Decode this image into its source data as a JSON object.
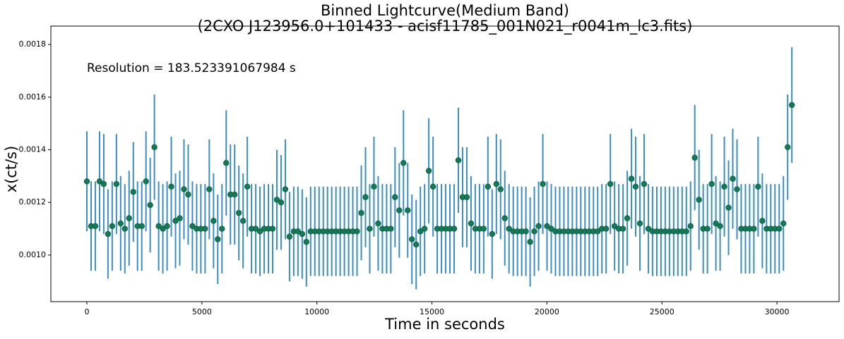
{
  "chart_data": {
    "type": "errorbar",
    "title": [
      "Binned Lightcurve(Medium Band)",
      "(2CXO J123956.0+101433 - acisf11785_001N021_r0041m_lc3.fits)"
    ],
    "annotation": "Resolution = 183.523391067984 s",
    "xlabel": "Time in seconds",
    "ylabel": "x(ct/s)",
    "marker_color": "#137a55",
    "errorbar_color": "#3b8dc1",
    "xlim": [
      -1566,
      32700
    ],
    "ylim": [
      0.000823,
      0.00187
    ],
    "xticks": [
      0,
      5000,
      10000,
      15000,
      20000,
      25000,
      30000
    ],
    "yticks": [
      {
        "value": 0.001,
        "label": "0.0010"
      },
      0.0012,
      0.0014,
      0.0016,
      0.0018
    ],
    "x": [
      0,
      184,
      367,
      551,
      734,
      918,
      1101,
      1285,
      1468,
      1652,
      1835,
      2019,
      2202,
      2386,
      2569,
      2753,
      2936,
      3120,
      3303,
      3487,
      3670,
      3854,
      4038,
      4221,
      4405,
      4588,
      4772,
      4955,
      5139,
      5322,
      5506,
      5689,
      5873,
      6056,
      6240,
      6423,
      6607,
      6790,
      6974,
      7157,
      7341,
      7524,
      7708,
      7892,
      8075,
      8259,
      8442,
      8626,
      8809,
      8993,
      9176,
      9360,
      9543,
      9727,
      9910,
      10094,
      10277,
      10461,
      10644,
      10828,
      11011,
      11195,
      11378,
      11562,
      11745,
      11929,
      12113,
      12296,
      12480,
      12663,
      12847,
      13030,
      13214,
      13397,
      13581,
      13764,
      13948,
      14131,
      14315,
      14498,
      14682,
      14865,
      15049,
      15232,
      15416,
      15599,
      15783,
      15967,
      16150,
      16334,
      16517,
      16701,
      16884,
      17068,
      17251,
      17435,
      17618,
      17802,
      17985,
      18169,
      18352,
      18536,
      18719,
      18903,
      19086,
      19270,
      19453,
      19637,
      19821,
      20004,
      20188,
      20371,
      20555,
      20738,
      20922,
      21105,
      21289,
      21472,
      21656,
      21839,
      22023,
      22206,
      22390,
      22573,
      22757,
      22940,
      23124,
      23307,
      23491,
      23675,
      23858,
      24042,
      24225,
      24409,
      24592,
      24776,
      24959,
      25143,
      25326,
      25510,
      25693,
      25877,
      26060,
      26244,
      26427,
      26611,
      26794,
      26978,
      27161,
      27345,
      27529,
      27712,
      27896,
      28079,
      28263,
      28446,
      28630,
      28813,
      28997,
      29180,
      29364,
      29547,
      29731,
      29914,
      30098,
      30281,
      30465,
      30648
    ],
    "values": [
      0.00128,
      0.00111,
      0.00111,
      0.00128,
      0.00127,
      0.00108,
      0.00111,
      0.00127,
      0.00112,
      0.0011,
      0.00114,
      0.00124,
      0.00111,
      0.00111,
      0.00128,
      0.00119,
      0.00141,
      0.00111,
      0.0011,
      0.00111,
      0.00126,
      0.00113,
      0.00114,
      0.00125,
      0.00123,
      0.00111,
      0.0011,
      0.0011,
      0.0011,
      0.00125,
      0.00113,
      0.00106,
      0.0011,
      0.00135,
      0.00123,
      0.00123,
      0.00116,
      0.00113,
      0.00126,
      0.0011,
      0.0011,
      0.00109,
      0.0011,
      0.0011,
      0.0011,
      0.00121,
      0.0012,
      0.00125,
      0.00107,
      0.00109,
      0.00109,
      0.00108,
      0.00105,
      0.00109,
      0.00109,
      0.00109,
      0.00109,
      0.00109,
      0.00109,
      0.00109,
      0.00109,
      0.00109,
      0.00109,
      0.00109,
      0.00109,
      0.00116,
      0.00122,
      0.0011,
      0.00126,
      0.00112,
      0.0011,
      0.0011,
      0.0011,
      0.00122,
      0.00117,
      0.00135,
      0.00117,
      0.00106,
      0.00104,
      0.00109,
      0.0011,
      0.00132,
      0.00126,
      0.0011,
      0.0011,
      0.0011,
      0.0011,
      0.0011,
      0.00136,
      0.00122,
      0.00122,
      0.00112,
      0.0011,
      0.0011,
      0.0011,
      0.00126,
      0.00108,
      0.00127,
      0.00125,
      0.00114,
      0.0011,
      0.00109,
      0.00109,
      0.00109,
      0.00109,
      0.00105,
      0.00109,
      0.00111,
      0.00127,
      0.00111,
      0.0011,
      0.00109,
      0.00109,
      0.00109,
      0.00109,
      0.00109,
      0.00109,
      0.00109,
      0.00109,
      0.00109,
      0.00109,
      0.00109,
      0.0011,
      0.0011,
      0.00127,
      0.00111,
      0.0011,
      0.0011,
      0.00114,
      0.00129,
      0.00126,
      0.00112,
      0.00127,
      0.0011,
      0.00109,
      0.00109,
      0.00109,
      0.00109,
      0.00109,
      0.00109,
      0.00109,
      0.00109,
      0.00109,
      0.00111,
      0.00137,
      0.00121,
      0.0011,
      0.0011,
      0.00127,
      0.00112,
      0.00111,
      0.00126,
      0.00118,
      0.00129,
      0.00125,
      0.0011,
      0.0011,
      0.0011,
      0.0011,
      0.00126,
      0.00113,
      0.0011,
      0.0011,
      0.0011,
      0.0011,
      0.00112,
      0.00141,
      0.00157
    ],
    "errors": [
      0.00019,
      0.00017,
      0.00017,
      0.00019,
      0.00019,
      0.00017,
      0.00017,
      0.00019,
      0.00018,
      0.00017,
      0.00018,
      0.00019,
      0.00017,
      0.00017,
      0.00019,
      0.00018,
      0.0002,
      0.00017,
      0.00017,
      0.00017,
      0.00019,
      0.00018,
      0.00018,
      0.00019,
      0.00019,
      0.00017,
      0.00017,
      0.00017,
      0.00017,
      0.00019,
      0.00018,
      0.00017,
      0.00017,
      0.0002,
      0.00019,
      0.00019,
      0.00018,
      0.00018,
      0.00019,
      0.00017,
      0.00017,
      0.00017,
      0.00017,
      0.00017,
      0.00017,
      0.00019,
      0.00018,
      0.00019,
      0.00017,
      0.00017,
      0.00017,
      0.00017,
      0.00017,
      0.00017,
      0.00017,
      0.00017,
      0.00017,
      0.00017,
      0.00017,
      0.00017,
      0.00017,
      0.00017,
      0.00017,
      0.00017,
      0.00017,
      0.00018,
      0.00019,
      0.00017,
      0.00019,
      0.00018,
      0.00017,
      0.00017,
      0.00017,
      0.00019,
      0.00018,
      0.0002,
      0.00018,
      0.00017,
      0.00017,
      0.00017,
      0.00017,
      0.0002,
      0.00019,
      0.00017,
      0.00017,
      0.00017,
      0.00017,
      0.00017,
      0.0002,
      0.00019,
      0.00019,
      0.00018,
      0.00017,
      0.00017,
      0.00017,
      0.00019,
      0.00017,
      0.00019,
      0.00019,
      0.00018,
      0.00017,
      0.00017,
      0.00017,
      0.00017,
      0.00017,
      0.00017,
      0.00017,
      0.00017,
      0.00019,
      0.00017,
      0.00017,
      0.00017,
      0.00017,
      0.00017,
      0.00017,
      0.00017,
      0.00017,
      0.00017,
      0.00017,
      0.00017,
      0.00017,
      0.00017,
      0.00017,
      0.00017,
      0.00019,
      0.00017,
      0.00017,
      0.00017,
      0.00018,
      0.00019,
      0.00019,
      0.00018,
      0.00019,
      0.00017,
      0.00017,
      0.00017,
      0.00017,
      0.00017,
      0.00017,
      0.00017,
      0.00017,
      0.00017,
      0.00017,
      0.00017,
      0.0002,
      0.00019,
      0.00017,
      0.00017,
      0.00019,
      0.00018,
      0.00017,
      0.00019,
      0.00018,
      0.00019,
      0.00019,
      0.00017,
      0.00017,
      0.00017,
      0.00017,
      0.00019,
      0.00018,
      0.00017,
      0.00017,
      0.00017,
      0.00017,
      0.00018,
      0.0002,
      0.00022
    ]
  }
}
